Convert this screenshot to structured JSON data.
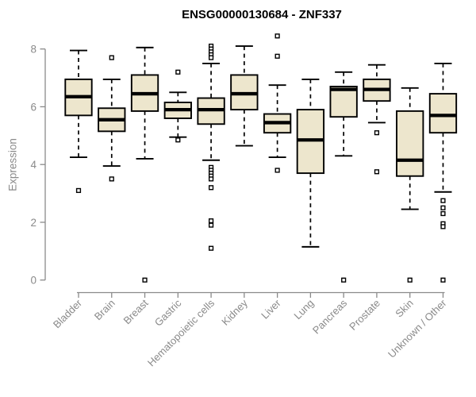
{
  "title": "ENSG00000130684 - ZNF337",
  "chart_data": {
    "type": "boxplot",
    "title": "ENSG00000130684 - ZNF337",
    "xlabel": "",
    "ylabel": "Expression",
    "ylim": [
      0,
      8.6
    ],
    "yticks": [
      0,
      2,
      4,
      6,
      8
    ],
    "grid": false,
    "legend": null,
    "axis_color": "#8a8a8a",
    "box_fill": "#ede6cd",
    "box_stroke": "#000000",
    "categories": [
      "Bladder",
      "Brain",
      "Breast",
      "Gastric",
      "Hematopoietic cells",
      "Kidney",
      "Liver",
      "Lung",
      "Pancreas",
      "Prostate",
      "Skin",
      "Unknown / Other"
    ],
    "boxes": [
      {
        "category": "Bladder",
        "whisker_low": 4.25,
        "q1": 5.7,
        "median": 6.35,
        "q3": 6.95,
        "whisker_high": 7.95,
        "outliers": [
          3.1
        ]
      },
      {
        "category": "Brain",
        "whisker_low": 3.95,
        "q1": 5.15,
        "median": 5.55,
        "q3": 5.95,
        "whisker_high": 6.95,
        "outliers": [
          7.7,
          3.5
        ]
      },
      {
        "category": "Breast",
        "whisker_low": 4.2,
        "q1": 5.85,
        "median": 6.45,
        "q3": 7.1,
        "whisker_high": 8.05,
        "outliers": [
          0
        ]
      },
      {
        "category": "Gastric",
        "whisker_low": 4.95,
        "q1": 5.6,
        "median": 5.9,
        "q3": 6.15,
        "whisker_high": 6.5,
        "outliers": [
          7.2,
          4.85
        ]
      },
      {
        "category": "Hematopoietic cells",
        "whisker_low": 4.15,
        "q1": 5.4,
        "median": 5.9,
        "q3": 6.3,
        "whisker_high": 7.5,
        "outliers": [
          8.1,
          8.0,
          7.9,
          7.8,
          7.7,
          3.9,
          3.8,
          3.7,
          3.6,
          3.5,
          3.2,
          2.05,
          1.9,
          1.1
        ]
      },
      {
        "category": "Kidney",
        "whisker_low": 4.65,
        "q1": 5.9,
        "median": 6.45,
        "q3": 7.1,
        "whisker_high": 8.1,
        "outliers": []
      },
      {
        "category": "Liver",
        "whisker_low": 4.25,
        "q1": 5.1,
        "median": 5.45,
        "q3": 5.75,
        "whisker_high": 6.75,
        "outliers": [
          8.45,
          7.75,
          3.8
        ]
      },
      {
        "category": "Lung",
        "whisker_low": 1.15,
        "q1": 3.7,
        "median": 4.85,
        "q3": 5.9,
        "whisker_high": 6.95,
        "outliers": []
      },
      {
        "category": "Pancreas",
        "whisker_low": 4.3,
        "q1": 5.65,
        "median": 6.6,
        "q3": 6.7,
        "whisker_high": 7.2,
        "outliers": [
          0
        ]
      },
      {
        "category": "Prostate",
        "whisker_low": 5.45,
        "q1": 6.2,
        "median": 6.6,
        "q3": 6.95,
        "whisker_high": 7.45,
        "outliers": [
          5.1,
          3.75
        ]
      },
      {
        "category": "Skin",
        "whisker_low": 2.45,
        "q1": 3.6,
        "median": 4.15,
        "q3": 5.85,
        "whisker_high": 6.65,
        "outliers": [
          0
        ]
      },
      {
        "category": "Unknown / Other",
        "whisker_low": 3.05,
        "q1": 5.1,
        "median": 5.7,
        "q3": 6.45,
        "whisker_high": 7.5,
        "outliers": [
          2.75,
          2.5,
          2.3,
          1.95,
          1.85,
          0
        ]
      }
    ]
  }
}
